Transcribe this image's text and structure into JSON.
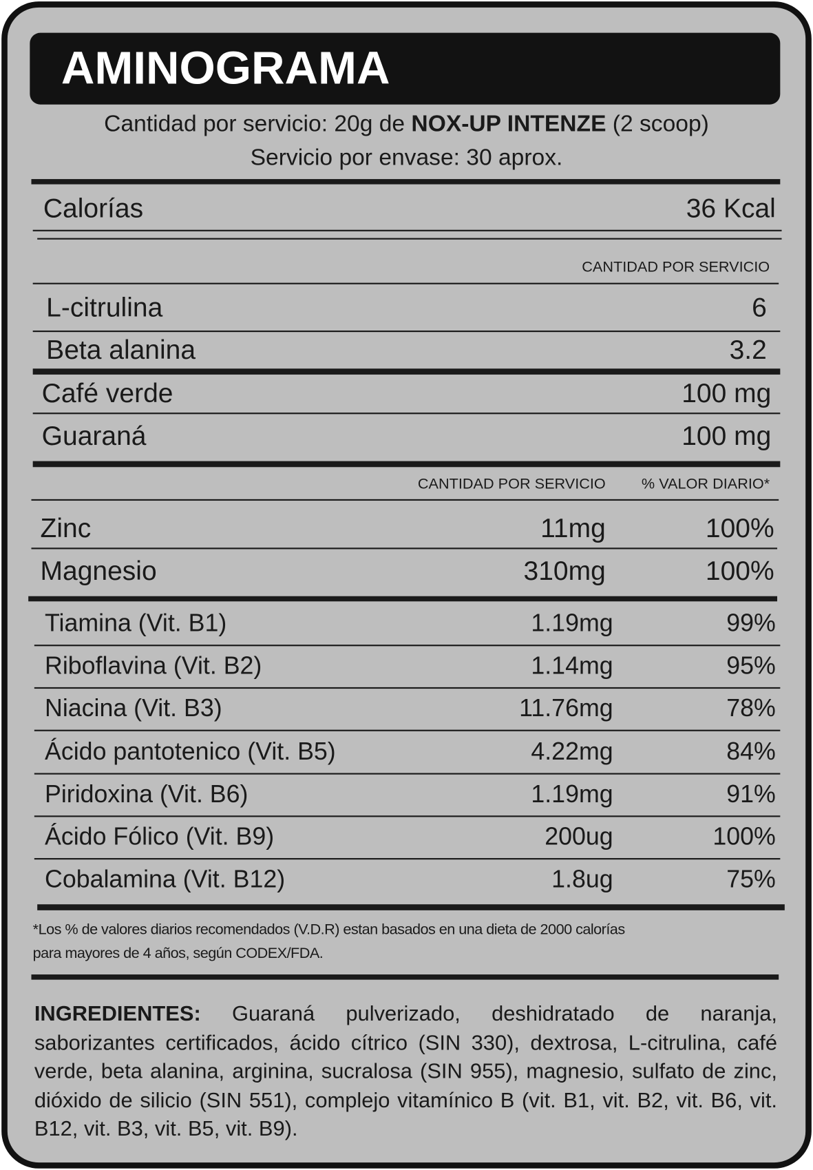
{
  "title": "AMINOGRAMA",
  "serving": {
    "prefix": "Cantidad por servicio: 20g de ",
    "product": "NOX-UP INTENZE",
    "suffix": " (2 scoop)",
    "per_container": "Servicio por envase: 30 aprox."
  },
  "calories": {
    "label": "Calorías",
    "value": "36 Kcal"
  },
  "section1": {
    "header": "CANTIDAD POR SERVICIO",
    "rows": [
      {
        "name": "L-citrulina",
        "amount": "6"
      },
      {
        "name": "Beta alanina",
        "amount": "3.2"
      },
      {
        "name": "Café verde",
        "amount": "100 mg"
      },
      {
        "name": "Guaraná",
        "amount": "100 mg"
      }
    ]
  },
  "section2": {
    "header_amount": "CANTIDAD POR SERVICIO",
    "header_dv": "% VALOR DIARIO*",
    "minerals": [
      {
        "name": "Zinc",
        "amount": "11mg",
        "dv": "100%"
      },
      {
        "name": "Magnesio",
        "amount": "310mg",
        "dv": "100%"
      }
    ],
    "vitamins": [
      {
        "name": "Tiamina (Vit. B1)",
        "amount": "1.19mg",
        "dv": "99%"
      },
      {
        "name": "Riboflavina (Vit. B2)",
        "amount": "1.14mg",
        "dv": "95%"
      },
      {
        "name": "Niacina (Vit. B3)",
        "amount": "11.76mg",
        "dv": "78%"
      },
      {
        "name": "Ácido pantotenico (Vit. B5)",
        "amount": "4.22mg",
        "dv": "84%"
      },
      {
        "name": "Piridoxina (Vit. B6)",
        "amount": "1.19mg",
        "dv": "91%"
      },
      {
        "name": "Ácido Fólico (Vit. B9)",
        "amount": "200ug",
        "dv": "100%"
      },
      {
        "name": "Cobalamina (Vit. B12)",
        "amount": "1.8ug",
        "dv": "75%"
      }
    ]
  },
  "footnote": {
    "line1": "*Los % de valores diarios recomendados (V.D.R) estan basados en una dieta de 2000 calorías",
    "line2": "para mayores de 4 años, según CODEX/FDA."
  },
  "ingredients": {
    "label": "INGREDIENTES:",
    "text": " Guaraná pulverizado, deshidratado de naranja, saborizantes certificados, ácido cítrico (SIN 330), dextrosa, L-citrulina, café verde, beta alanina, arginina, sucralosa (SIN 955), magnesio, sulfato de zinc, dióxido de silicio (SIN 551), complejo vitamínico B (vit. B1, vit. B2, vit. B6, vit. B12, vit. B3, vit. B5, vit. B9)."
  }
}
